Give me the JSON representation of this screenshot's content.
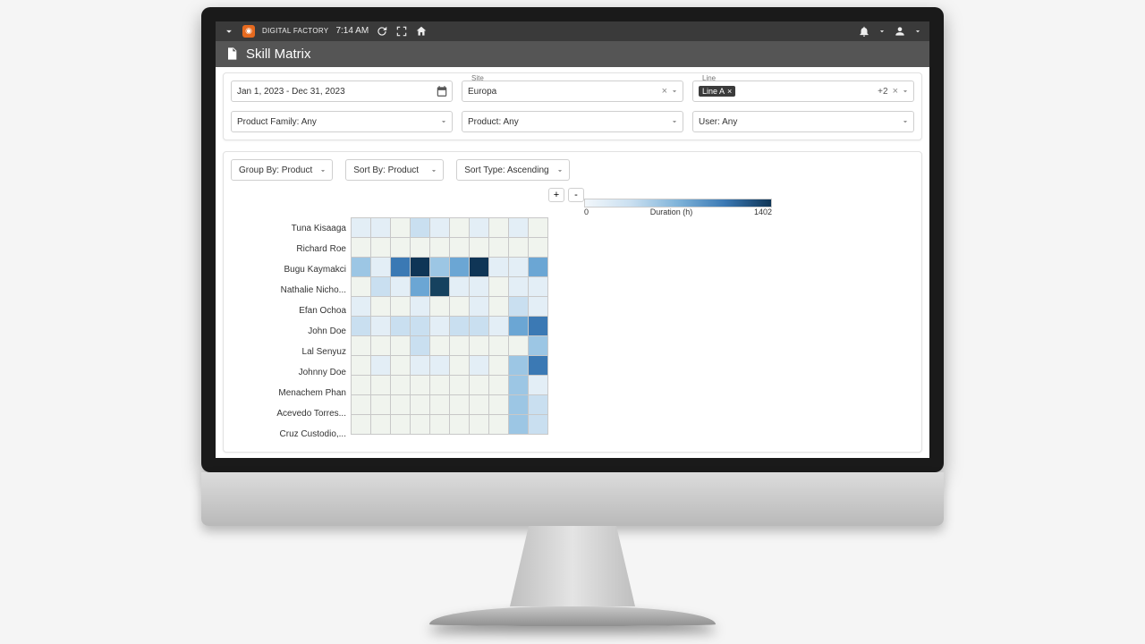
{
  "topbar": {
    "brand": "DIGITAL FACTORY",
    "time": "7:14 AM"
  },
  "header": {
    "title": "Skill Matrix"
  },
  "filters": {
    "date_range": "Jan 1, 2023 - Dec 31, 2023",
    "site_label": "Site",
    "site_value": "Europa",
    "line_label": "Line",
    "line_chip": "Line A",
    "line_extra": "+2",
    "product_family": "Product Family: Any",
    "product": "Product: Any",
    "user": "User: Any"
  },
  "toolbar": {
    "group_by": "Group By: Product",
    "sort_by": "Sort By: Product",
    "sort_type": "Sort Type: Ascending",
    "plus": "+",
    "minus": "-"
  },
  "legend": {
    "min": "0",
    "label": "Duration (h)",
    "max": "1402",
    "colors": [
      "#f2f7fb",
      "#c9dff0",
      "#7fb3d9",
      "#3b79b4",
      "#0f3556"
    ]
  },
  "heatmap": {
    "type": "heatmap",
    "cols": 10,
    "cell_size": 23,
    "border_color": "#c8c8c8",
    "row_labels": [
      "Tuna Kisaaga",
      "Richard Roe",
      "Bugu Kaymakci",
      "Nathalie Nicho...",
      "Efan Ochoa",
      "John Doe",
      "Lal Senyuz",
      "Johnny Doe",
      "Menachem Phan",
      "Acevedo Torres...",
      "Cruz Custodio,..."
    ],
    "value_range": [
      0,
      1402
    ],
    "palette": {
      "0": "#f0f4ee",
      "1": "#e3eef6",
      "2": "#c9dff0",
      "3": "#9cc6e4",
      "4": "#6ba6d4",
      "5": "#3b79b4",
      "6": "#16425f",
      "7": "#0f3556"
    },
    "values": [
      [
        1,
        1,
        0,
        2,
        1,
        0,
        1,
        0,
        1,
        0
      ],
      [
        0,
        0,
        0,
        0,
        0,
        0,
        0,
        0,
        0,
        0
      ],
      [
        3,
        1,
        5,
        7,
        3,
        4,
        7,
        1,
        1,
        4
      ],
      [
        0,
        2,
        1,
        4,
        6,
        1,
        1,
        0,
        1,
        1
      ],
      [
        1,
        0,
        0,
        1,
        0,
        0,
        1,
        0,
        2,
        1
      ],
      [
        2,
        1,
        2,
        2,
        1,
        2,
        2,
        1,
        4,
        5
      ],
      [
        0,
        0,
        0,
        2,
        0,
        0,
        0,
        0,
        0,
        3
      ],
      [
        0,
        1,
        0,
        1,
        1,
        0,
        1,
        0,
        3,
        5
      ],
      [
        0,
        0,
        0,
        0,
        0,
        0,
        0,
        0,
        3,
        1
      ],
      [
        0,
        0,
        0,
        0,
        0,
        0,
        0,
        0,
        3,
        2
      ],
      [
        0,
        0,
        0,
        0,
        0,
        0,
        0,
        0,
        3,
        2
      ]
    ]
  }
}
